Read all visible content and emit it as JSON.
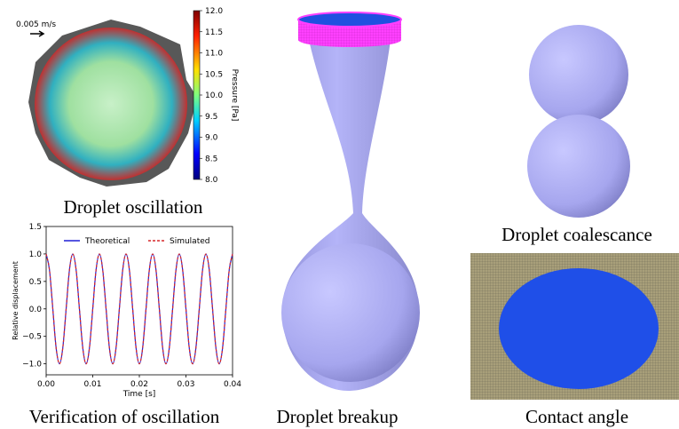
{
  "panels": {
    "oscillation": {
      "caption": "Droplet oscillation",
      "velocity_label": "0.005 m/s",
      "colorbar": {
        "label": "Pressure [Pa]",
        "lim": [
          8,
          12
        ],
        "ticks": [
          {
            "value": 12,
            "label": "12.0"
          },
          {
            "value": 11.5,
            "label": "11.5"
          },
          {
            "value": 11,
            "label": "11.0"
          },
          {
            "value": 10.5,
            "label": "10.5"
          },
          {
            "value": 10,
            "label": "10.0"
          },
          {
            "value": 9.5,
            "label": "9.5"
          },
          {
            "value": 9,
            "label": "9.0"
          },
          {
            "value": 8.5,
            "label": "8.5"
          },
          {
            "value": 8,
            "label": "8.0"
          }
        ]
      }
    },
    "verification": {
      "caption": "Verification of oscillation"
    },
    "breakup": {
      "caption": "Droplet breakup"
    },
    "coalescence": {
      "caption": "Droplet coalescance"
    },
    "contact": {
      "caption": "Contact angle"
    }
  },
  "chart_data": {
    "type": "line",
    "xlabel": "Time [s]",
    "ylabel": "Relative displacement",
    "x": [
      0,
      0.00071,
      0.00143,
      0.00214,
      0.00286,
      0.00357,
      0.00429,
      0.005,
      0.00571,
      0.00643,
      0.00714,
      0.00786,
      0.00857,
      0.00929,
      0.01,
      0.01071,
      0.01143,
      0.01214,
      0.01286,
      0.01357,
      0.01429,
      0.015,
      0.01571,
      0.01643,
      0.01714,
      0.01786,
      0.01857,
      0.01929,
      0.02,
      0.02071,
      0.02143,
      0.02214,
      0.02286,
      0.02357,
      0.02429,
      0.025,
      0.02571,
      0.02643,
      0.02714,
      0.02786,
      0.02857,
      0.02929,
      0.03,
      0.03071,
      0.03143,
      0.03214,
      0.03286,
      0.03357,
      0.03429,
      0.035,
      0.03571,
      0.03643,
      0.03714,
      0.03786,
      0.03857,
      0.03929,
      0.04
    ],
    "series": [
      {
        "name": "Theoretical",
        "color": "#1f1fd6",
        "dash": false,
        "values": [
          1,
          0.71,
          0,
          -0.71,
          -1,
          -0.71,
          0,
          0.71,
          1,
          0.71,
          0,
          -0.71,
          -1,
          -0.71,
          0,
          0.71,
          1,
          0.71,
          0,
          -0.71,
          -1,
          -0.71,
          0,
          0.71,
          1,
          0.71,
          0,
          -0.71,
          -1,
          -0.71,
          0,
          0.71,
          1,
          0.71,
          0,
          -0.71,
          -1,
          -0.71,
          0,
          0.71,
          1,
          0.71,
          0,
          -0.71,
          -1,
          -0.71,
          0,
          0.71,
          1,
          0.71,
          0,
          -0.71,
          -1,
          -0.71,
          0,
          0.71,
          1
        ]
      },
      {
        "name": "Simulated",
        "color": "#d62728",
        "dash": true,
        "values": [
          1,
          0.71,
          0,
          -0.71,
          -1,
          -0.71,
          0,
          0.71,
          1,
          0.71,
          0,
          -0.71,
          -1,
          -0.71,
          0,
          0.71,
          1,
          0.71,
          0,
          -0.71,
          -1,
          -0.71,
          0,
          0.71,
          1,
          0.71,
          0,
          -0.71,
          -1,
          -0.71,
          0,
          0.71,
          1,
          0.71,
          0,
          -0.71,
          -1,
          -0.71,
          0,
          0.71,
          1,
          0.71,
          0,
          -0.71,
          -1,
          -0.71,
          0,
          0.71,
          1,
          0.71,
          0,
          -0.71,
          -1,
          -0.71,
          0,
          0.71,
          1
        ]
      }
    ],
    "xlim": [
      0,
      0.04
    ],
    "xticks": [
      {
        "value": 0,
        "label": "0.00"
      },
      {
        "value": 0.01,
        "label": "0.01"
      },
      {
        "value": 0.02,
        "label": "0.02"
      },
      {
        "value": 0.03,
        "label": "0.03"
      },
      {
        "value": 0.04,
        "label": "0.04"
      }
    ],
    "ylim": [
      -1.2,
      1.5
    ],
    "yticks": [
      {
        "value": 1.5,
        "label": "1.5"
      },
      {
        "value": 1,
        "label": "1.0"
      },
      {
        "value": 0.5,
        "label": "0.5"
      },
      {
        "value": 0,
        "label": "0.0"
      },
      {
        "value": -0.5,
        "label": "−0.5"
      },
      {
        "value": -1,
        "label": "−1.0"
      }
    ],
    "legend": "upper center"
  }
}
